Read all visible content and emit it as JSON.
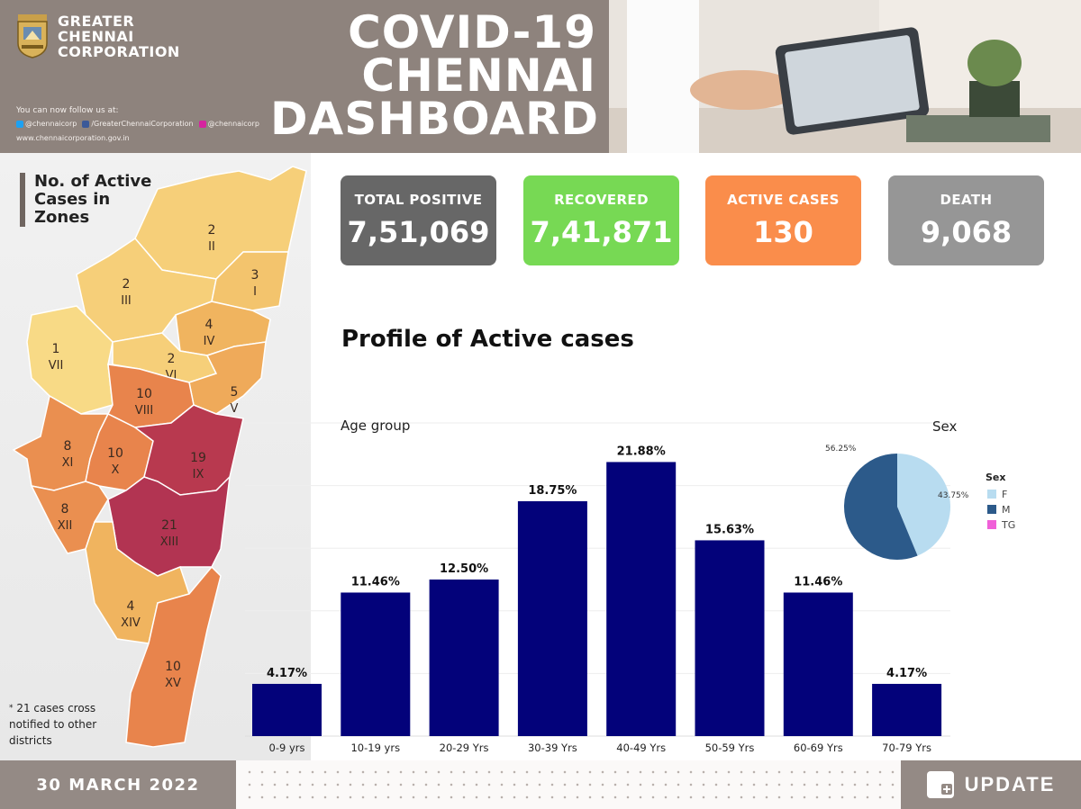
{
  "header": {
    "org_line1": "GREATER",
    "org_line2": "CHENNAI",
    "org_line3": "CORPORATION",
    "follow_text": "You can now follow us at:",
    "twitter": "@chennaicorp",
    "facebook": "/GreaterChennaiCorporation",
    "instagram": "@chennaicorp",
    "website": "www.chennaicorporation.gov.in",
    "title_line1": "COVID-19",
    "title_line2": "CHENNAI",
    "title_line3": "DASHBOARD"
  },
  "map": {
    "title_line1": "No. of Active",
    "title_line2": "Cases in",
    "title_line3": "Zones",
    "note_star": "*",
    "note_text": "21  cases cross notified to other districts",
    "zones": [
      {
        "id": "II",
        "count": "2",
        "color": "#f6cf79"
      },
      {
        "id": "III",
        "count": "2",
        "color": "#f6cf79"
      },
      {
        "id": "I",
        "count": "3",
        "color": "#f3c46d"
      },
      {
        "id": "IV",
        "count": "4",
        "color": "#f0b45f"
      },
      {
        "id": "VII",
        "count": "1",
        "color": "#f8da86"
      },
      {
        "id": "VI",
        "count": "2",
        "color": "#f6cf79"
      },
      {
        "id": "V",
        "count": "5",
        "color": "#efaa5a"
      },
      {
        "id": "VIII",
        "count": "10",
        "color": "#e8844c"
      },
      {
        "id": "XI",
        "count": "8",
        "color": "#ea8f50"
      },
      {
        "id": "X",
        "count": "10",
        "color": "#e8844c"
      },
      {
        "id": "IX",
        "count": "19",
        "color": "#b8394f"
      },
      {
        "id": "XII",
        "count": "8",
        "color": "#ea8f50"
      },
      {
        "id": "XIII",
        "count": "21",
        "color": "#b23452"
      },
      {
        "id": "XIV",
        "count": "4",
        "color": "#f0b45f"
      },
      {
        "id": "XV",
        "count": "10",
        "color": "#e8844c"
      }
    ]
  },
  "kpis": {
    "total_label": "TOTAL POSITIVE",
    "total_value": "7,51,069",
    "recovered_label": "RECOVERED",
    "recovered_value": "7,41,871",
    "active_label": "ACTIVE CASES",
    "active_value": "130",
    "death_label": "DEATH",
    "death_value": "9,068"
  },
  "profile_title": "Profile of Active cases",
  "chart_data": [
    {
      "type": "bar",
      "title": "Age group",
      "categories": [
        "0-9 yrs",
        "10-19 yrs",
        "20-29 Yrs",
        "30-39 Yrs",
        "40-49 Yrs",
        "50-59 Yrs",
        "60-69 Yrs",
        "70-79 Yrs"
      ],
      "values": [
        4.17,
        11.46,
        12.5,
        18.75,
        21.88,
        15.63,
        11.46,
        4.17
      ],
      "labels": [
        "4.17%",
        "11.46%",
        "12.50%",
        "18.75%",
        "21.88%",
        "15.63%",
        "11.46%",
        "4.17%"
      ],
      "ylim": [
        0,
        25
      ],
      "color": "#03027a",
      "grid": true
    },
    {
      "type": "pie",
      "title": "Sex",
      "legend_title": "Sex",
      "legend_position": "right",
      "slices": [
        {
          "name": "F",
          "value": 43.75,
          "label": "43.75%",
          "color": "#b8dcf0"
        },
        {
          "name": "M",
          "value": 56.25,
          "label": "56.25%",
          "color": "#2c5a8a"
        },
        {
          "name": "TG",
          "value": 0,
          "label": "",
          "color": "#f060d8"
        }
      ]
    }
  ],
  "footer": {
    "date": "30 MARCH 2022",
    "update_label": "UPDATE"
  }
}
